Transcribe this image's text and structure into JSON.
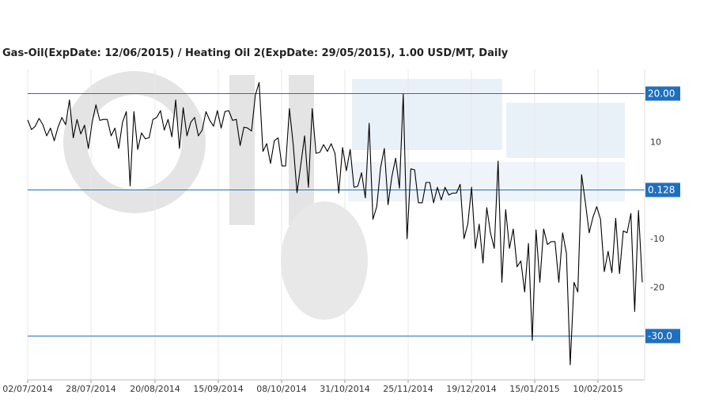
{
  "chart_data": {
    "type": "line",
    "title": "Gas-Oil(ExpDate: 12/06/2015) / Heating Oil 2(ExpDate: 29/05/2015), 1.00 USD/MT, Daily",
    "ylim": [
      -36,
      22
    ],
    "y_ticks": [
      {
        "value": 10,
        "label": "10"
      },
      {
        "value": -10,
        "label": "-10"
      },
      {
        "value": -20,
        "label": "-20"
      }
    ],
    "x_ticks": [
      "02/07/2014",
      "28/07/2014",
      "20/08/2014",
      "15/09/2014",
      "08/10/2014",
      "31/10/2014",
      "25/11/2014",
      "19/12/2014",
      "15/01/2015",
      "10/02/2015"
    ],
    "reference_lines": [
      {
        "value": 20.0,
        "label": "20.00"
      },
      {
        "value": 0.128,
        "label": "0.128"
      },
      {
        "value": -30.0,
        "label": "-30.0"
      }
    ],
    "line_color": "#000000",
    "reference_color": "#1f6fbf",
    "watermark": "OilStat",
    "series": [
      {
        "values": [
          14.5,
          12.5,
          13.2,
          14.8,
          13.5,
          11.2,
          12.8,
          10.2,
          13.0,
          15.0,
          13.5,
          18.6,
          10.8,
          14.6,
          11.6,
          13.4,
          8.6,
          14.0,
          17.6,
          14.4,
          14.6,
          14.6,
          11.2,
          12.8,
          8.6,
          14.0,
          16.2,
          0.9,
          16.2,
          8.4,
          11.8,
          10.6,
          10.8,
          14.6,
          15.0,
          16.4,
          12.4,
          14.6,
          11.0,
          18.6,
          8.6,
          17.0,
          11.2,
          14.0,
          15.0,
          11.2,
          12.4,
          16.2,
          14.4,
          13.2,
          16.4,
          12.8,
          16.2,
          16.4,
          14.4,
          14.6,
          9.2,
          13.0,
          12.8,
          12.2,
          19.6,
          22.2,
          8.0,
          9.6,
          5.5,
          10.2,
          10.8,
          5.0,
          5.0,
          16.8,
          9.4,
          -0.5,
          5.3,
          11.2,
          0.6,
          16.8,
          7.6,
          7.8,
          9.4,
          8.0,
          9.6,
          7.6,
          -0.6,
          8.8,
          4.0,
          8.4,
          0.6,
          0.8,
          3.6,
          -1.6,
          13.8,
          -6.0,
          -3.4,
          4.6,
          8.6,
          -3.0,
          2.8,
          6.6,
          0.4,
          19.8,
          -10.0,
          4.4,
          4.2,
          -2.6,
          -2.6,
          1.6,
          1.6,
          -2.6,
          0.6,
          -2.0,
          0.6,
          -1.0,
          -0.6,
          -0.6,
          1.2,
          -10.0,
          -7.0,
          0.6,
          -12.0,
          -7.0,
          -15.0,
          -3.6,
          -8.8,
          -12.0,
          6.0,
          -19.0,
          -4.0,
          -12.0,
          -8.0,
          -15.8,
          -14.6,
          -21.0,
          -11.0,
          -31.0,
          -8.2,
          -19.0,
          -8.0,
          -11.2,
          -10.6,
          -10.6,
          -19.0,
          -8.8,
          -13.0,
          -36.0,
          -19.0,
          -21.0,
          3.2,
          -2.6,
          -8.8,
          -5.6,
          -3.4,
          -6.0,
          -16.8,
          -12.6,
          -17.0,
          -5.8,
          -17.2,
          -8.4,
          -8.8,
          -4.8,
          -25.0,
          -4.2,
          -19.0
        ]
      }
    ]
  }
}
